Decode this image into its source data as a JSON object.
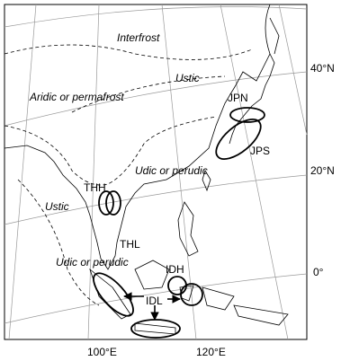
{
  "map": {
    "regions": [
      "Interfrost",
      "Ustic",
      "Aridic or permafrost",
      "Ustic",
      "Udic or perudic",
      "Udic or perudic"
    ],
    "sites": [
      "JPN",
      "JPS",
      "THH",
      "THL",
      "IDH",
      "IDL"
    ],
    "latitude_labels": [
      "40°N",
      "20°N",
      "0°"
    ],
    "longitude_labels": [
      "100°E",
      "120°E"
    ]
  }
}
